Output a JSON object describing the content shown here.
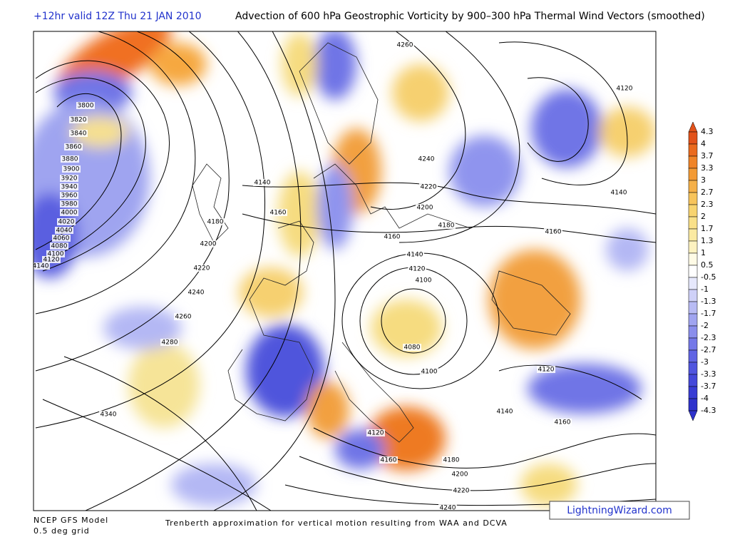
{
  "header": {
    "run": "+12hr valid 12Z Thu 21 JAN 2010",
    "title": "Advection of 600 hPa Geostrophic Vorticity by 900–300 hPa Thermal Wind Vectors (smoothed)"
  },
  "footer": {
    "model": "NCEP GFS Model",
    "grid": "0.5 deg grid",
    "caption": "Trenberth approximation for vertical motion resulting from WAA and DCVA",
    "brand": "LightningWizard.com"
  },
  "legend": {
    "labels": [
      "4.3",
      "4",
      "3.7",
      "3.3",
      "3",
      "2.7",
      "2.3",
      "2",
      "1.7",
      "1.3",
      "1",
      "0.5",
      "-0.5",
      "-1",
      "-1.3",
      "-1.7",
      "-2",
      "-2.3",
      "-2.7",
      "-3",
      "-3.3",
      "-3.7",
      "-4",
      "-4.3"
    ]
  },
  "contours": {
    "labels": [
      "3800",
      "3820",
      "3840",
      "3860",
      "3880",
      "3900",
      "3920",
      "3940",
      "3960",
      "3980",
      "4000",
      "4020",
      "4040",
      "4060",
      "4080",
      "4100",
      "4120",
      "4140",
      "4140",
      "4160",
      "4180",
      "4200",
      "4220",
      "4240",
      "4260",
      "4280",
      "4340",
      "4260",
      "4240",
      "4220",
      "4200",
      "4180",
      "4160",
      "4140",
      "4120",
      "4100",
      "4080",
      "4100",
      "4140",
      "4120",
      "4160",
      "4120",
      "4140",
      "4160",
      "4120",
      "4160",
      "4180",
      "4200",
      "4220",
      "4240"
    ]
  }
}
